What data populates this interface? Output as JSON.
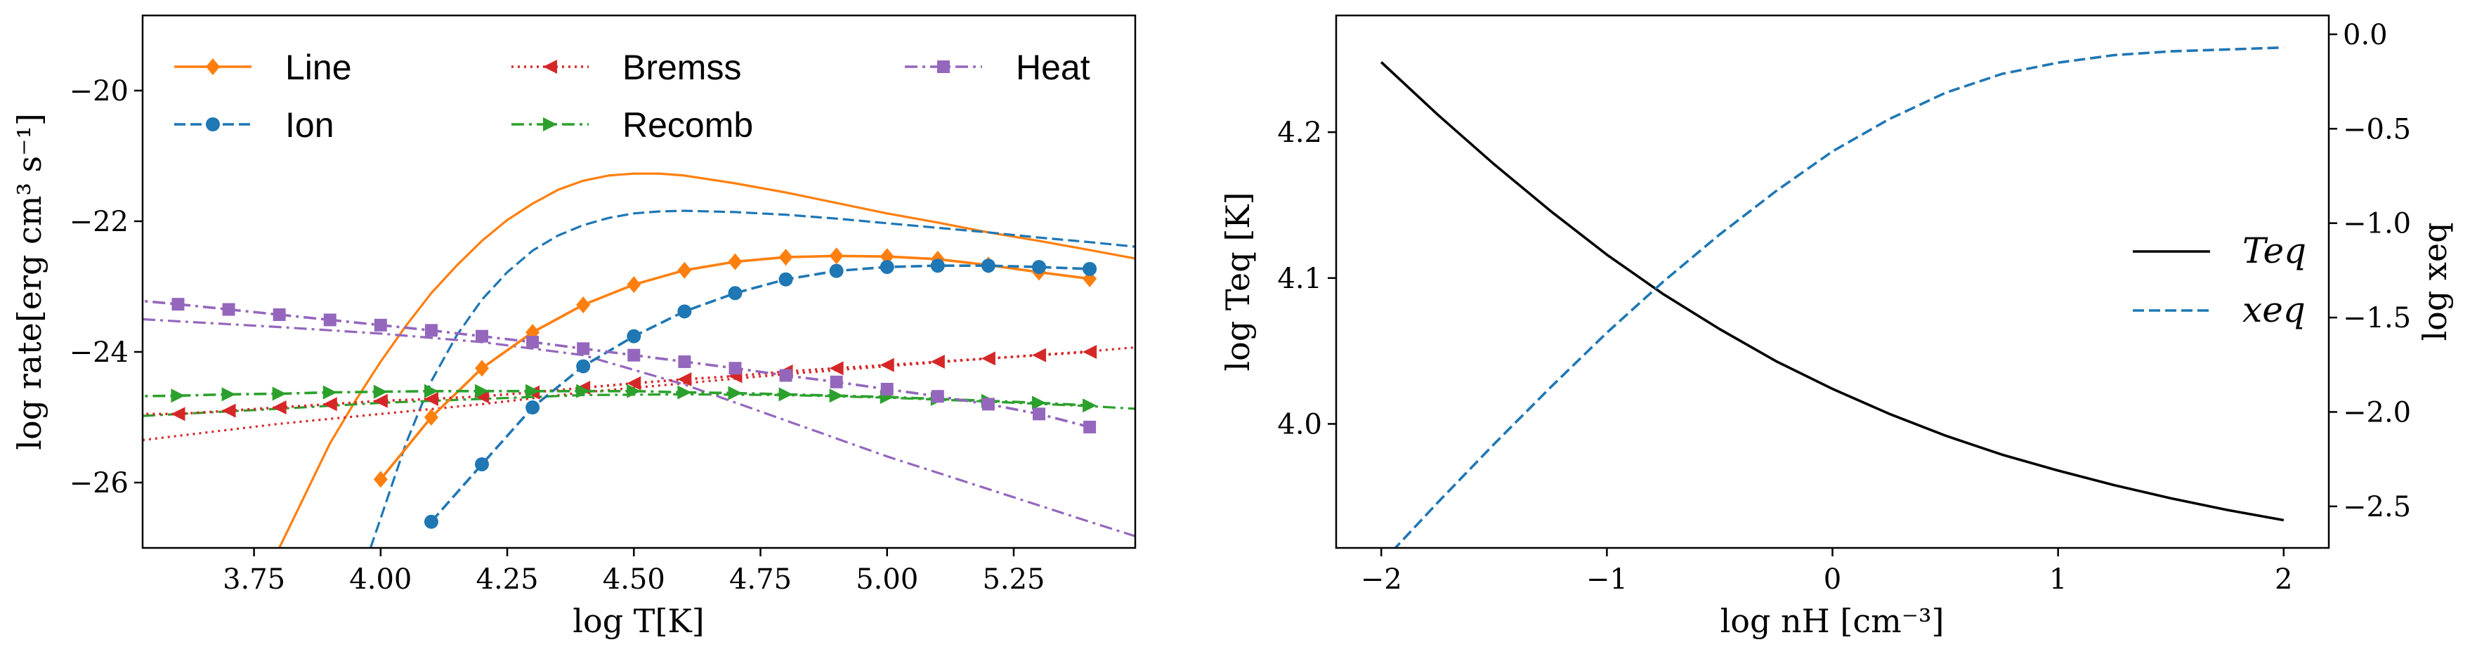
{
  "chart_data": [
    {
      "type": "line",
      "panel": "left",
      "xlabel": "log T[K]",
      "ylabel": "log rate[erg cm³ s⁻¹]",
      "xlim": [
        3.53,
        5.49
      ],
      "ylim": [
        -27.0,
        -18.85
      ],
      "xticks": [
        3.75,
        4.0,
        4.25,
        4.5,
        4.75,
        5.0,
        5.25
      ],
      "xtick_labels": [
        "3.75",
        "4.00",
        "4.25",
        "4.50",
        "4.75",
        "5.00",
        "5.25"
      ],
      "yticks": [
        -26,
        -24,
        -22,
        -20
      ],
      "ytick_labels": [
        "−26",
        "−24",
        "−22",
        "−20"
      ],
      "grid": false,
      "legend_position": "top",
      "legend_columns": 3,
      "series": [
        {
          "name": "Line",
          "color": "#ff7f0e",
          "style": "solid",
          "marker": "diamond",
          "x": [
            4.0,
            4.1,
            4.2,
            4.3,
            4.4,
            4.5,
            4.6,
            4.7,
            4.8,
            4.9,
            5.0,
            5.1,
            5.2,
            5.3,
            5.4
          ],
          "y": [
            -25.95,
            -25.0,
            -24.25,
            -23.7,
            -23.28,
            -22.97,
            -22.75,
            -22.62,
            -22.55,
            -22.53,
            -22.54,
            -22.58,
            -22.67,
            -22.78,
            -22.88
          ],
          "curve": {
            "name": "Line (dense)",
            "style": "solid",
            "x": [
              3.8,
              3.85,
              3.9,
              3.95,
              4.0,
              4.05,
              4.1,
              4.15,
              4.2,
              4.25,
              4.3,
              4.35,
              4.4,
              4.45,
              4.5,
              4.55,
              4.6,
              4.7,
              4.8,
              4.9,
              5.0,
              5.1,
              5.2,
              5.3,
              5.4,
              5.49
            ],
            "y": [
              -27.0,
              -26.2,
              -25.4,
              -24.75,
              -24.15,
              -23.6,
              -23.1,
              -22.68,
              -22.3,
              -21.98,
              -21.73,
              -21.52,
              -21.38,
              -21.3,
              -21.27,
              -21.27,
              -21.3,
              -21.42,
              -21.56,
              -21.72,
              -21.88,
              -22.02,
              -22.17,
              -22.3,
              -22.44,
              -22.57
            ]
          }
        },
        {
          "name": "Ion",
          "color": "#1f77b4",
          "style": "dashed",
          "marker": "circle",
          "x": [
            4.1,
            4.2,
            4.3,
            4.4,
            4.5,
            4.6,
            4.7,
            4.8,
            4.9,
            5.0,
            5.1,
            5.2,
            5.3,
            5.4
          ],
          "y": [
            -26.6,
            -25.72,
            -24.85,
            -24.22,
            -23.76,
            -23.38,
            -23.1,
            -22.89,
            -22.76,
            -22.7,
            -22.68,
            -22.68,
            -22.7,
            -22.73
          ],
          "curve": {
            "name": "Ion (dense)",
            "style": "dashed",
            "x": [
              3.98,
              4.0,
              4.05,
              4.1,
              4.15,
              4.2,
              4.25,
              4.3,
              4.35,
              4.4,
              4.45,
              4.5,
              4.55,
              4.6,
              4.7,
              4.8,
              4.9,
              5.0,
              5.1,
              5.2,
              5.3,
              5.4,
              5.49
            ],
            "y": [
              -27.0,
              -26.55,
              -25.4,
              -24.45,
              -23.75,
              -23.2,
              -22.78,
              -22.45,
              -22.22,
              -22.06,
              -21.95,
              -21.88,
              -21.85,
              -21.84,
              -21.86,
              -21.9,
              -21.96,
              -22.03,
              -22.1,
              -22.17,
              -22.25,
              -22.32,
              -22.39
            ]
          }
        },
        {
          "name": "Bremss",
          "color": "#d62728",
          "style": "dotted",
          "marker": "triangle-left",
          "x": [
            3.5,
            3.6,
            3.7,
            3.8,
            3.9,
            4.0,
            4.1,
            4.2,
            4.3,
            4.4,
            4.5,
            4.6,
            4.7,
            4.8,
            4.9,
            5.0,
            5.1,
            5.2,
            5.3,
            5.4
          ],
          "y": [
            -24.95,
            -24.95,
            -24.9,
            -24.85,
            -24.8,
            -24.75,
            -24.72,
            -24.68,
            -24.62,
            -24.55,
            -24.48,
            -24.42,
            -24.37,
            -24.3,
            -24.25,
            -24.2,
            -24.15,
            -24.1,
            -24.05,
            -24.0
          ],
          "curve": {
            "name": "Bremss (dense)",
            "style": "dotted",
            "x": [
              3.53,
              3.8,
              4.0,
              4.2,
              4.4,
              4.6,
              4.8,
              5.0,
              5.2,
              5.4,
              5.49
            ],
            "y": [
              -25.35,
              -25.1,
              -24.95,
              -24.8,
              -24.62,
              -24.48,
              -24.34,
              -24.22,
              -24.1,
              -23.99,
              -23.93
            ]
          }
        },
        {
          "name": "Recomb",
          "color": "#2ca02c",
          "style": "dashdot",
          "marker": "triangle-right",
          "x": [
            3.5,
            3.6,
            3.7,
            3.8,
            3.9,
            4.0,
            4.1,
            4.2,
            4.3,
            4.4,
            4.5,
            4.6,
            4.7,
            4.8,
            4.9,
            5.0,
            5.1,
            5.2,
            5.3,
            5.4
          ],
          "y": [
            -24.68,
            -24.67,
            -24.65,
            -24.64,
            -24.62,
            -24.61,
            -24.6,
            -24.6,
            -24.6,
            -24.6,
            -24.6,
            -24.62,
            -24.63,
            -24.65,
            -24.67,
            -24.69,
            -24.72,
            -24.75,
            -24.78,
            -24.82
          ],
          "curve": {
            "name": "Recomb (dense)",
            "style": "dashdot",
            "x": [
              3.53,
              3.8,
              4.0,
              4.2,
              4.4,
              4.6,
              4.8,
              5.0,
              5.2,
              5.4,
              5.49
            ],
            "y": [
              -24.98,
              -24.87,
              -24.78,
              -24.72,
              -24.66,
              -24.65,
              -24.66,
              -24.7,
              -24.76,
              -24.83,
              -24.87
            ]
          }
        },
        {
          "name": "Heat",
          "color": "#9467bd",
          "style": "dashdot",
          "marker": "square",
          "x": [
            3.5,
            3.6,
            3.7,
            3.8,
            3.9,
            4.0,
            4.1,
            4.2,
            4.3,
            4.4,
            4.5,
            4.6,
            4.7,
            4.8,
            4.9,
            5.0,
            5.1,
            5.2,
            5.3,
            5.4
          ],
          "y": [
            -23.2,
            -23.27,
            -23.35,
            -23.43,
            -23.51,
            -23.59,
            -23.67,
            -23.76,
            -23.85,
            -23.95,
            -24.05,
            -24.15,
            -24.25,
            -24.36,
            -24.46,
            -24.57,
            -24.68,
            -24.8,
            -24.95,
            -25.15
          ],
          "curve": {
            "name": "Heat (dense)",
            "style": "dashdot",
            "x": [
              3.53,
              3.8,
              4.0,
              4.2,
              4.4,
              4.6,
              4.8,
              5.0,
              5.1,
              5.2,
              5.3,
              5.4,
              5.49
            ],
            "y": [
              -23.5,
              -23.62,
              -23.72,
              -23.85,
              -24.05,
              -24.5,
              -25.05,
              -25.6,
              -25.85,
              -26.1,
              -26.35,
              -26.6,
              -26.82
            ]
          }
        }
      ]
    },
    {
      "type": "line",
      "panel": "right",
      "xlabel": "log nH [cm⁻³]",
      "ylabel": "log Teq [K]",
      "ylabel_right": "log xeq",
      "xlim": [
        -2.2,
        2.2
      ],
      "ylim": [
        3.915,
        4.28
      ],
      "ylim_right": [
        -2.72,
        0.1
      ],
      "xticks": [
        -2,
        -1,
        0,
        1,
        2
      ],
      "xtick_labels": [
        "−2",
        "−1",
        "0",
        "1",
        "2"
      ],
      "yticks": [
        4.0,
        4.1,
        4.2
      ],
      "ytick_labels": [
        "4.0",
        "4.1",
        "4.2"
      ],
      "yticks_right": [
        -2.5,
        -2.0,
        -1.5,
        -1.0,
        -0.5,
        0.0
      ],
      "ytick_labels_right": [
        "−2.5",
        "−2.0",
        "−1.5",
        "−1.0",
        "−0.5",
        "0.0"
      ],
      "grid": false,
      "legend_position": "center-right",
      "series": [
        {
          "name": "Teq",
          "color": "#000000",
          "style": "solid",
          "axis": "left",
          "x": [
            -2,
            -1.75,
            -1.5,
            -1.25,
            -1,
            -0.75,
            -0.5,
            -0.25,
            0,
            0.25,
            0.5,
            0.75,
            1,
            1.25,
            1.5,
            1.75,
            2
          ],
          "y": [
            4.248,
            4.212,
            4.178,
            4.146,
            4.116,
            4.089,
            4.065,
            4.043,
            4.024,
            4.007,
            3.992,
            3.979,
            3.968,
            3.958,
            3.949,
            3.941,
            3.934
          ]
        },
        {
          "name": "xeq",
          "color": "#1f77b4",
          "style": "dashed",
          "axis": "right",
          "x": [
            -2,
            -1.75,
            -1.5,
            -1.25,
            -1,
            -0.75,
            -0.5,
            -0.25,
            0,
            0.25,
            0.5,
            0.75,
            1,
            1.25,
            1.5,
            1.75,
            2
          ],
          "y": [
            -2.8,
            -2.48,
            -2.17,
            -1.87,
            -1.58,
            -1.31,
            -1.06,
            -0.83,
            -0.62,
            -0.45,
            -0.31,
            -0.21,
            -0.15,
            -0.11,
            -0.09,
            -0.08,
            -0.07
          ]
        }
      ]
    }
  ]
}
